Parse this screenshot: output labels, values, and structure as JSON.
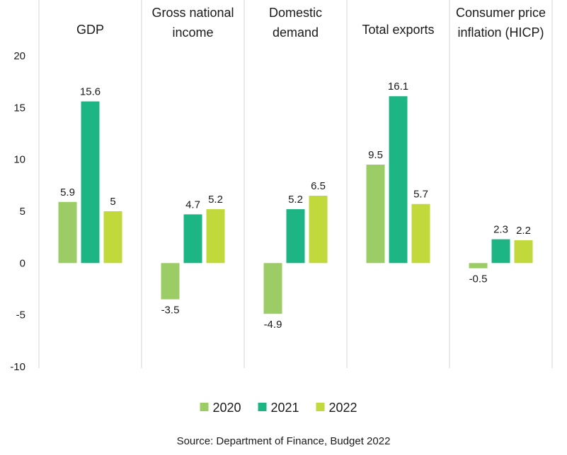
{
  "chart_data": {
    "type": "bar",
    "categories": [
      [
        "GDP"
      ],
      [
        "Gross national",
        "income"
      ],
      [
        "Domestic",
        "demand"
      ],
      [
        "Total exports"
      ],
      [
        "Consumer price",
        "inflation (HICP)"
      ]
    ],
    "series": [
      {
        "name": "2020",
        "color": "#9ccc65",
        "values": [
          5.9,
          -3.5,
          -4.9,
          9.5,
          -0.5
        ]
      },
      {
        "name": "2021",
        "color": "#1db584",
        "values": [
          15.6,
          4.7,
          5.2,
          16.1,
          2.3
        ]
      },
      {
        "name": "2022",
        "color": "#c2d93b",
        "values": [
          5,
          5.2,
          6.5,
          5.7,
          2.2
        ]
      }
    ],
    "data_labels": [
      [
        "5.9",
        "15.6",
        "5"
      ],
      [
        "-3.5",
        "4.7",
        "5.2"
      ],
      [
        "-4.9",
        "5.2",
        "6.5"
      ],
      [
        "9.5",
        "16.1",
        "5.7"
      ],
      [
        "-0.5",
        "2.3",
        "2.2"
      ]
    ],
    "yticks": [
      20,
      15,
      10,
      5,
      0,
      -5,
      -10
    ],
    "ylim": [
      -10,
      20
    ],
    "legend_position": "bottom",
    "title": "",
    "xlabel": "",
    "ylabel": ""
  },
  "source": "Source: Department of Finance, Budget 2022"
}
